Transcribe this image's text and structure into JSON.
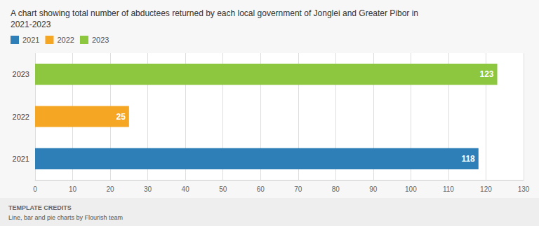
{
  "chart_data": {
    "type": "bar",
    "orientation": "horizontal",
    "title": "A chart showing total number of abductees returned by each local government of Jonglei and Greater Pibor in\n2021-2023",
    "categories": [
      "2021",
      "2022",
      "2023"
    ],
    "values": [
      118,
      25,
      123
    ],
    "colors": [
      "#2e7fb8",
      "#f5a623",
      "#8dc63f"
    ],
    "xlim": [
      0,
      130
    ],
    "xticks": [
      0,
      10,
      20,
      30,
      40,
      50,
      60,
      70,
      80,
      90,
      100,
      110,
      120,
      130
    ],
    "grid": true,
    "legend": "upper left",
    "data_labels": true,
    "annotations": [
      "TEMPLATE CREDITS",
      "Line, bar and pie charts by Flourish team"
    ]
  }
}
